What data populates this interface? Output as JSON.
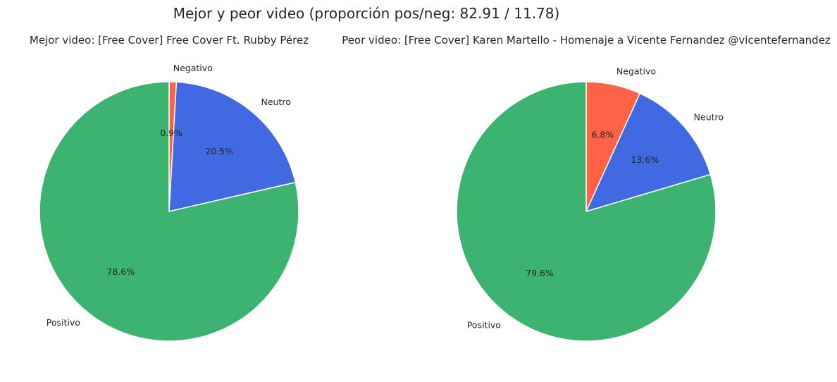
{
  "figure": {
    "suptitle": "Mejor y peor video (proporción pos/neg: 82.91 / 11.78)"
  },
  "colors": {
    "Negativo": "#ff6347",
    "Neutro": "#4169e1",
    "Positivo": "#3cb371"
  },
  "chart_data": [
    {
      "type": "pie",
      "title": "Mejor video: [Free Cover] Free Cover Ft. Rubby Pérez",
      "categories": [
        "Negativo",
        "Neutro",
        "Positivo"
      ],
      "values": [
        0.9,
        20.5,
        78.6
      ],
      "value_labels": [
        "0.9%",
        "20.5%",
        "78.6%"
      ],
      "start_angle": 90,
      "direction": "clockwise"
    },
    {
      "type": "pie",
      "title": "Peor video: [Free Cover] Karen Martello - Homenaje a Vicente Fernandez @vicentefernandez",
      "categories": [
        "Negativo",
        "Neutro",
        "Positivo"
      ],
      "values": [
        6.8,
        13.6,
        79.6
      ],
      "value_labels": [
        "6.8%",
        "13.6%",
        "79.6%"
      ],
      "start_angle": 90,
      "direction": "clockwise"
    }
  ]
}
